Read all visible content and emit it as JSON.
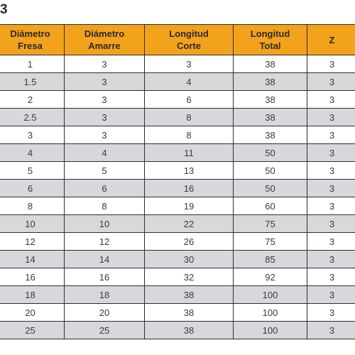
{
  "corner_label": "3",
  "table": {
    "headers": [
      {
        "line1": "Diámetro",
        "line2": "Fresa"
      },
      {
        "line1": "Diámetro",
        "line2": "Amarre"
      },
      {
        "line1": "Longitud",
        "line2": "Corte"
      },
      {
        "line1": "Longitud",
        "line2": "Total"
      },
      {
        "line1": "Z",
        "line2": ""
      }
    ],
    "rows": [
      [
        "1",
        "3",
        "3",
        "38",
        "3"
      ],
      [
        "1.5",
        "3",
        "4",
        "38",
        "3"
      ],
      [
        "2",
        "3",
        "6",
        "38",
        "3"
      ],
      [
        "2.5",
        "3",
        "8",
        "38",
        "3"
      ],
      [
        "3",
        "3",
        "8",
        "38",
        "3"
      ],
      [
        "4",
        "4",
        "11",
        "50",
        "3"
      ],
      [
        "5",
        "5",
        "13",
        "50",
        "3"
      ],
      [
        "6",
        "6",
        "16",
        "50",
        "3"
      ],
      [
        "8",
        "8",
        "19",
        "60",
        "3"
      ],
      [
        "10",
        "10",
        "22",
        "75",
        "3"
      ],
      [
        "12",
        "12",
        "26",
        "75",
        "3"
      ],
      [
        "14",
        "14",
        "30",
        "85",
        "3"
      ],
      [
        "16",
        "16",
        "32",
        "92",
        "3"
      ],
      [
        "18",
        "18",
        "38",
        "100",
        "3"
      ],
      [
        "20",
        "20",
        "38",
        "100",
        "3"
      ],
      [
        "25",
        "25",
        "38",
        "100",
        "3"
      ]
    ]
  }
}
